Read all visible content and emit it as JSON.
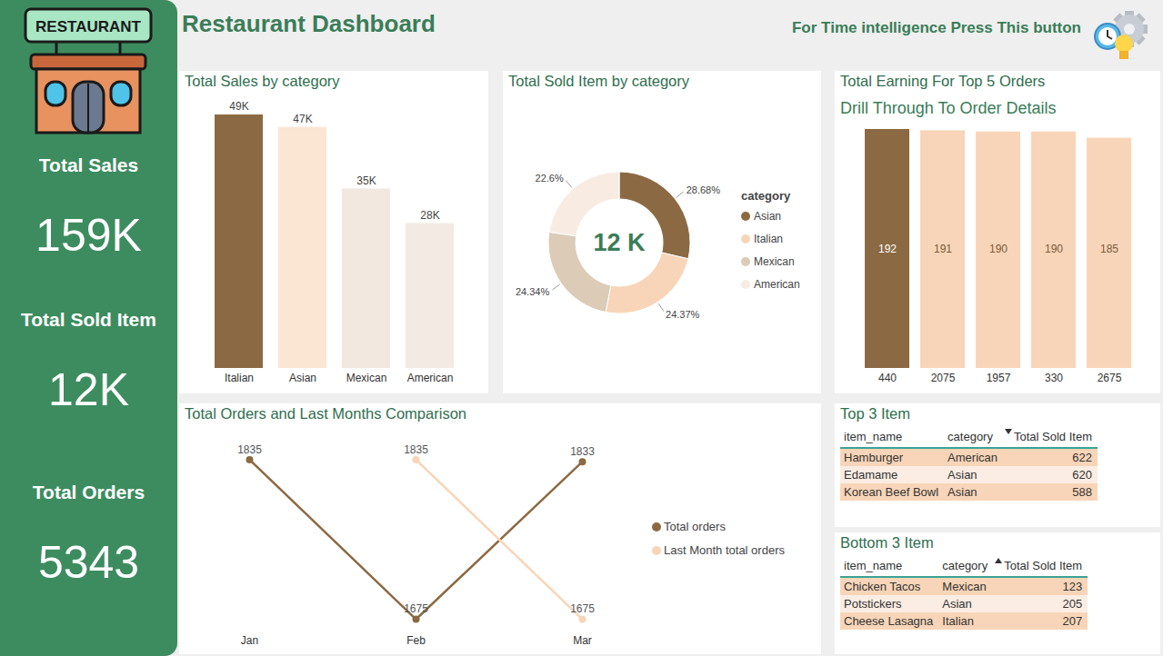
{
  "header": {
    "title": "Restaurant Dashboard",
    "button_text": "For Time intelligence Press This button",
    "logo_text": "RESTAURANT"
  },
  "kpis": [
    {
      "label": "Total Sales",
      "value": "159K"
    },
    {
      "label": "Total Sold Item",
      "value": "12K"
    },
    {
      "label": "Total Orders",
      "value": "5343"
    }
  ],
  "chart_data": [
    {
      "type": "bar",
      "title": "Total Sales by category",
      "categories": [
        "Italian",
        "Asian",
        "Mexican",
        "American"
      ],
      "values": [
        49000,
        46600,
        34700,
        28000
      ],
      "value_labels": [
        "49K",
        "47K",
        "35K",
        "28K"
      ],
      "colors": [
        "#8B6A43",
        "#FBE5D3",
        "#F3E8DF",
        "#F3EAE3"
      ],
      "ylim": [
        0,
        49000
      ],
      "data_labels": true,
      "tick_labels": "x"
    },
    {
      "type": "pie",
      "title": "Total Sold Item by category",
      "categories": [
        "Asian",
        "Italian",
        "Mexican",
        "American"
      ],
      "values": [
        28.68,
        24.37,
        24.34,
        22.6
      ],
      "value_labels": [
        "28.68%",
        "24.37%",
        "24.34%",
        "22.6%"
      ],
      "colors": [
        "#8B6A43",
        "#F8D5B8",
        "#DCCBB6",
        "#F8ECE2"
      ],
      "center_label": "12 K",
      "legend_title": "category",
      "legend": "right",
      "data_labels": true
    },
    {
      "type": "bar",
      "title": "Total Earning For Top 5 Orders",
      "subtitle": "Drill Through To Order Details",
      "categories": [
        "440",
        "2075",
        "1957",
        "330",
        "2675"
      ],
      "values": [
        192,
        191,
        190,
        190,
        185
      ],
      "colors": [
        "#8B6A43",
        "#F8D5B8",
        "#F8D5B8",
        "#F8D5B8",
        "#F8D5B8"
      ],
      "ylim": [
        0,
        192
      ],
      "data_labels": true,
      "tick_labels": "x"
    },
    {
      "type": "line",
      "title": "Total Orders and Last Months Comparison",
      "categories": [
        "Jan",
        "Feb",
        "Mar"
      ],
      "series": [
        {
          "name": "Total orders",
          "color": "#8B6A43",
          "values": [
            1835,
            1675,
            1833
          ]
        },
        {
          "name": "Last Month total orders",
          "color": "#F8D5B8",
          "values": [
            null,
            1835,
            1675
          ]
        }
      ],
      "ylim": [
        1665,
        1840
      ],
      "data_labels": true,
      "tick_labels": "x",
      "legend": "right",
      "marker": "circle"
    }
  ],
  "tables": [
    {
      "title": "Top 3 Item",
      "columns": [
        "item_name",
        "category",
        "Total Sold Item"
      ],
      "sort": "descending",
      "rows": [
        [
          "Hamburger",
          "American",
          622
        ],
        [
          "Edamame",
          "Asian",
          620
        ],
        [
          "Korean Beef Bowl",
          "Asian",
          588
        ]
      ]
    },
    {
      "title": "Bottom 3 Item",
      "columns": [
        "item_name",
        "category",
        "Total Sold Item"
      ],
      "sort": "ascending",
      "rows": [
        [
          "Chicken Tacos",
          "Mexican",
          123
        ],
        [
          "Potstickers",
          "Asian",
          205
        ],
        [
          "Cheese Lasagna",
          "Italian",
          207
        ]
      ]
    }
  ]
}
